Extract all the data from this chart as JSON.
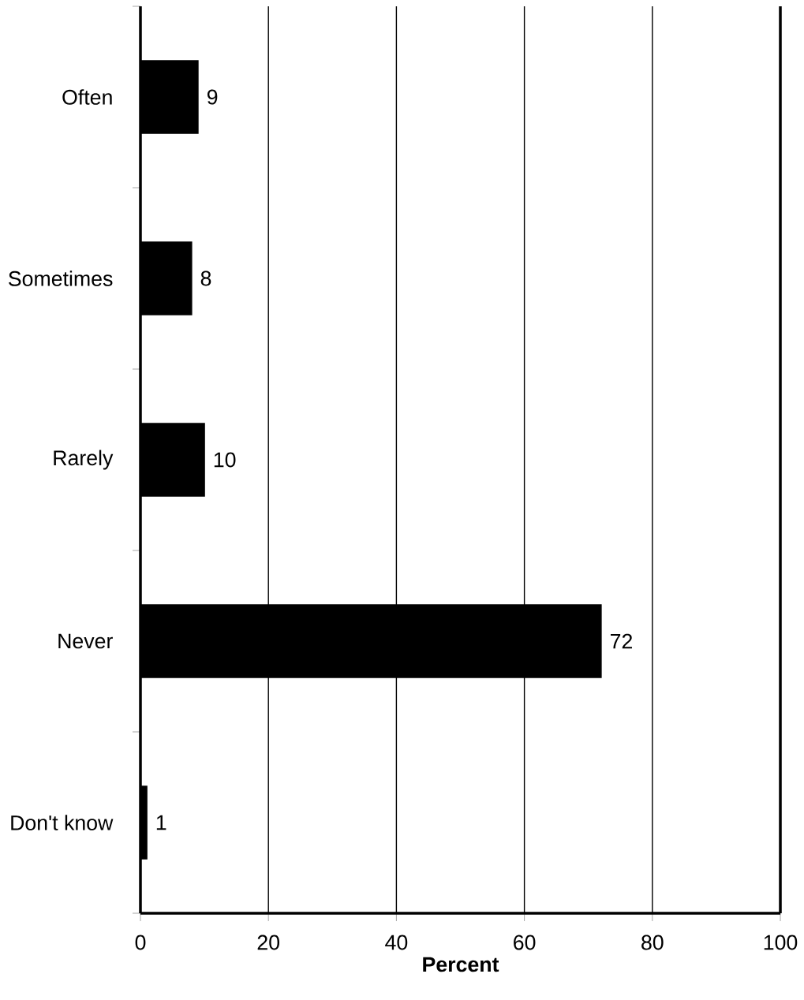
{
  "chart_data": {
    "type": "bar",
    "orientation": "horizontal",
    "categories": [
      "Often",
      "Sometimes",
      "Rarely",
      "Never",
      "Don't know"
    ],
    "values": [
      9,
      8,
      10,
      72,
      1
    ],
    "color": "#000000",
    "xlabel": "Percent",
    "xlim": [
      0,
      100
    ],
    "xticks": [
      0,
      20,
      40,
      60,
      80,
      100
    ],
    "grid": "x",
    "data_labels": true
  }
}
